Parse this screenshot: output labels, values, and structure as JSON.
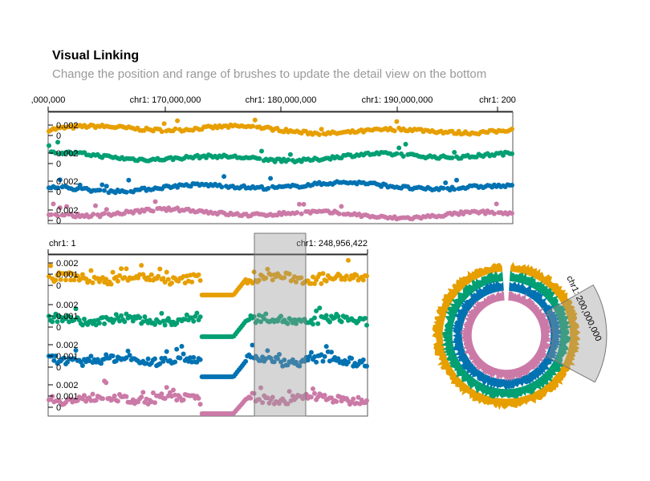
{
  "header": {
    "title": "Visual Linking",
    "subtitle": "Change the position and range of brushes to update the detail view on the bottom"
  },
  "colors": {
    "series": [
      "#E79F00",
      "#029F73",
      "#0072B2",
      "#CB7AA7"
    ],
    "brush": "#999999"
  },
  "chart_data": [
    {
      "type": "scatter",
      "view": "overview-track",
      "x_ticks": [
        ",000,000",
        "chr1: 170,000,000",
        "chr1: 180,000,000",
        "chr1: 190,000,000",
        "chr1: 200"
      ],
      "series_y_ticks": [
        "0.002",
        "0"
      ],
      "series": [
        {
          "color": "#E79F00",
          "baseline": 0.001
        },
        {
          "color": "#029F73",
          "baseline": 0.0005
        },
        {
          "color": "#0072B2",
          "baseline": 0.0008
        },
        {
          "color": "#CB7AA7",
          "baseline": 0.0003
        }
      ]
    },
    {
      "type": "scatter",
      "view": "detail-track",
      "x_ticks": [
        "chr1: 1",
        "chr1: 248,956,422"
      ],
      "series_y_ticks": [
        "0.002",
        "0.001",
        "0"
      ],
      "brush_range": [
        0.64,
        0.8
      ],
      "series": [
        {
          "color": "#E79F00",
          "baseline": 0.0012
        },
        {
          "color": "#029F73",
          "baseline": 0.001
        },
        {
          "color": "#0072B2",
          "baseline": 0.0009
        },
        {
          "color": "#CB7AA7",
          "baseline": 0.0005
        }
      ]
    },
    {
      "type": "area",
      "view": "circular-track",
      "brush_label": "chr1: 200,000,000",
      "series_colors": [
        "#E79F00",
        "#029F73",
        "#0072B2",
        "#CB7AA7"
      ]
    }
  ]
}
